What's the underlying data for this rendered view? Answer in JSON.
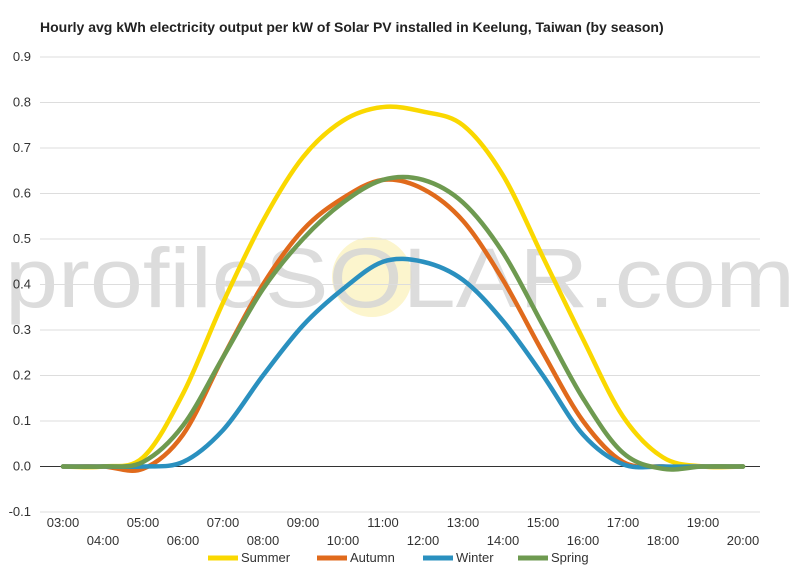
{
  "chart_data": {
    "type": "line",
    "title": "Hourly avg kWh electricity output per kW of Solar PV installed in Keelung, Taiwan (by season)",
    "xlabel": "",
    "ylabel": "",
    "ylim": [
      -0.1,
      0.9
    ],
    "yticks": [
      "0.9",
      "0.8",
      "0.7",
      "0.6",
      "0.5",
      "0.4",
      "0.3",
      "0.2",
      "0.1",
      "0.0",
      "-0.1"
    ],
    "categories": [
      "03:00",
      "04:00",
      "05:00",
      "06:00",
      "07:00",
      "08:00",
      "09:00",
      "10:00",
      "11:00",
      "12:00",
      "13:00",
      "14:00",
      "15:00",
      "16:00",
      "17:00",
      "18:00",
      "19:00",
      "20:00"
    ],
    "grid": true,
    "legend_position": "bottom",
    "watermark": "profileSOLAR.com",
    "series": [
      {
        "name": "Summer",
        "color": "#FAD800",
        "values": [
          0.0,
          0.0,
          0.02,
          0.16,
          0.36,
          0.54,
          0.68,
          0.76,
          0.79,
          0.78,
          0.75,
          0.64,
          0.46,
          0.28,
          0.11,
          0.02,
          0.0,
          0.0
        ]
      },
      {
        "name": "Autumn",
        "color": "#E06A1C",
        "values": [
          0.0,
          0.0,
          -0.005,
          0.07,
          0.24,
          0.4,
          0.52,
          0.59,
          0.63,
          0.61,
          0.54,
          0.41,
          0.25,
          0.1,
          0.01,
          0.0,
          0.0,
          0.0
        ]
      },
      {
        "name": "Winter",
        "color": "#2A90BF",
        "values": [
          0.0,
          0.0,
          0.0,
          0.01,
          0.08,
          0.2,
          0.31,
          0.39,
          0.45,
          0.45,
          0.41,
          0.32,
          0.2,
          0.07,
          0.005,
          0.0,
          0.0,
          0.0
        ]
      },
      {
        "name": "Spring",
        "color": "#6E9A50",
        "values": [
          0.0,
          0.0,
          0.01,
          0.09,
          0.24,
          0.39,
          0.5,
          0.58,
          0.63,
          0.63,
          0.58,
          0.47,
          0.31,
          0.15,
          0.03,
          -0.005,
          0.0,
          0.0
        ]
      }
    ]
  }
}
